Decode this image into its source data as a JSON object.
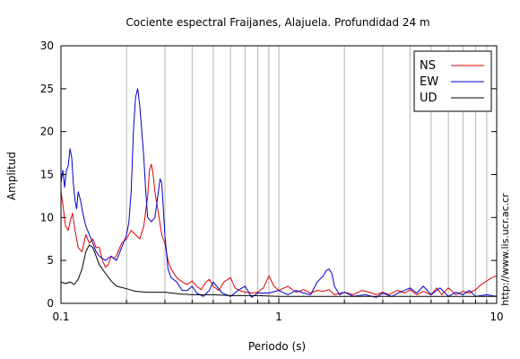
{
  "chart_data": {
    "type": "line",
    "title": "Cociente espectral Fraijanes, Alajuela. Profundidad 24 m",
    "xlabel": "Periodo (s)",
    "ylabel": "Amplitud",
    "x_scale": "log",
    "xlim": [
      0.1,
      10
    ],
    "ylim": [
      0,
      30
    ],
    "x_ticks": [
      {
        "value": 0.1,
        "label": "0.1"
      },
      {
        "value": 1,
        "label": "1"
      },
      {
        "value": 10,
        "label": "10"
      }
    ],
    "y_ticks": [
      {
        "value": 0,
        "label": "0"
      },
      {
        "value": 5,
        "label": "5"
      },
      {
        "value": 10,
        "label": "10"
      },
      {
        "value": 15,
        "label": "15"
      },
      {
        "value": 20,
        "label": "20"
      },
      {
        "value": 25,
        "label": "25"
      },
      {
        "value": 30,
        "label": "30"
      }
    ],
    "grid": "vertical",
    "legend_position": "top-right",
    "series": [
      {
        "name": "NS",
        "color": "#dd0000",
        "x": [
          0.1,
          0.102,
          0.105,
          0.108,
          0.11,
          0.113,
          0.116,
          0.12,
          0.125,
          0.13,
          0.135,
          0.14,
          0.145,
          0.15,
          0.155,
          0.16,
          0.165,
          0.17,
          0.175,
          0.18,
          0.19,
          0.2,
          0.21,
          0.22,
          0.23,
          0.24,
          0.25,
          0.255,
          0.26,
          0.265,
          0.27,
          0.28,
          0.29,
          0.3,
          0.31,
          0.32,
          0.34,
          0.36,
          0.38,
          0.4,
          0.42,
          0.44,
          0.46,
          0.48,
          0.5,
          0.53,
          0.56,
          0.6,
          0.63,
          0.66,
          0.7,
          0.75,
          0.8,
          0.85,
          0.9,
          0.95,
          1.0,
          1.1,
          1.2,
          1.3,
          1.4,
          1.5,
          1.6,
          1.7,
          1.8,
          2.0,
          2.2,
          2.4,
          2.6,
          2.8,
          3.0,
          3.2,
          3.5,
          3.8,
          4.0,
          4.3,
          4.6,
          5.0,
          5.3,
          5.6,
          6.0,
          6.5,
          7.0,
          7.5,
          8.0,
          8.5,
          9.0,
          9.5,
          10.0
        ],
        "y": [
          13,
          11.5,
          9,
          8.5,
          9.5,
          10.5,
          8.5,
          6.5,
          6,
          8,
          7,
          7.5,
          6.5,
          6.5,
          5,
          4.2,
          4.5,
          5.5,
          5.2,
          5.6,
          7,
          7.5,
          8.5,
          8,
          7.5,
          9,
          12.5,
          15.5,
          16.2,
          15,
          13,
          10.5,
          8,
          7,
          5,
          4,
          3,
          2.5,
          2.2,
          2.6,
          2,
          1.6,
          2.4,
          2.8,
          2,
          1.5,
          2.5,
          3,
          1.8,
          1.5,
          1.3,
          1.2,
          1.3,
          1.8,
          3.2,
          2,
          1.5,
          2.0,
          1.3,
          1.6,
          1.2,
          1.5,
          1.4,
          1.6,
          1.0,
          1.3,
          1.0,
          1.5,
          1.3,
          1.0,
          1.3,
          1.0,
          1.5,
          1.2,
          1.6,
          1.0,
          1.4,
          1.0,
          1.8,
          1.0,
          1.8,
          1.0,
          1.4,
          1.2,
          1.6,
          2.2,
          2.6,
          3.0,
          3.2
        ]
      },
      {
        "name": "EW",
        "color": "#0000cc",
        "x": [
          0.1,
          0.102,
          0.104,
          0.106,
          0.108,
          0.11,
          0.112,
          0.114,
          0.116,
          0.118,
          0.12,
          0.123,
          0.126,
          0.13,
          0.135,
          0.14,
          0.145,
          0.15,
          0.16,
          0.17,
          0.18,
          0.19,
          0.2,
          0.205,
          0.21,
          0.215,
          0.22,
          0.225,
          0.23,
          0.235,
          0.24,
          0.245,
          0.25,
          0.26,
          0.27,
          0.28,
          0.285,
          0.29,
          0.295,
          0.3,
          0.31,
          0.32,
          0.34,
          0.36,
          0.38,
          0.4,
          0.42,
          0.45,
          0.48,
          0.5,
          0.55,
          0.6,
          0.65,
          0.7,
          0.75,
          0.8,
          0.9,
          1.0,
          1.1,
          1.2,
          1.3,
          1.4,
          1.5,
          1.6,
          1.65,
          1.7,
          1.75,
          1.8,
          1.9,
          2.0,
          2.2,
          2.5,
          2.8,
          3.0,
          3.3,
          3.6,
          4.0,
          4.3,
          4.6,
          5.0,
          5.5,
          6.0,
          6.5,
          7.0,
          7.5,
          8.0,
          9.0,
          10.0
        ],
        "y": [
          14,
          15.5,
          13.5,
          15.5,
          16,
          18,
          17,
          14,
          12,
          11,
          13,
          12,
          10.5,
          9,
          8,
          7,
          6,
          5.5,
          5,
          5.5,
          5,
          6.5,
          8,
          9.5,
          13,
          20,
          24,
          25,
          23,
          20,
          17,
          13,
          10,
          9.5,
          10,
          13,
          14.5,
          14,
          11,
          8,
          4,
          3,
          2.5,
          1.5,
          1.5,
          2,
          1.2,
          0.8,
          1.5,
          2.5,
          1.2,
          0.8,
          1.5,
          2,
          0.7,
          1.2,
          1.2,
          1.5,
          1.0,
          1.5,
          1.2,
          1.0,
          2.5,
          3.2,
          3.8,
          4.0,
          3.5,
          2.0,
          1.0,
          1.3,
          0.8,
          1.0,
          0.7,
          1.2,
          0.8,
          1.3,
          1.8,
          1.2,
          2.0,
          1.0,
          1.8,
          0.8,
          1.3,
          1.0,
          1.5,
          0.8,
          1.0,
          0.8
        ]
      },
      {
        "name": "UD",
        "color": "#000000",
        "x": [
          0.1,
          0.105,
          0.11,
          0.115,
          0.12,
          0.125,
          0.13,
          0.135,
          0.14,
          0.145,
          0.15,
          0.16,
          0.17,
          0.18,
          0.2,
          0.22,
          0.25,
          0.3,
          0.35,
          0.4,
          0.5,
          0.6,
          0.7,
          0.8,
          1.0,
          1.2,
          1.5,
          2.0,
          2.5,
          3.0,
          4.0,
          5.0,
          6.0,
          7.0,
          8.0,
          10.0
        ],
        "y": [
          2.5,
          2.3,
          2.5,
          2.2,
          2.8,
          4,
          6,
          6.8,
          6.5,
          5.5,
          4.5,
          3.5,
          2.6,
          2.0,
          1.7,
          1.4,
          1.3,
          1.3,
          1.1,
          1.0,
          1.0,
          0.9,
          0.9,
          0.9,
          0.8,
          0.8,
          0.8,
          0.8,
          0.8,
          0.8,
          0.8,
          0.8,
          0.8,
          0.8,
          0.8,
          0.8
        ]
      }
    ]
  },
  "watermark": "http://www.lis.ucr.ac.cr"
}
